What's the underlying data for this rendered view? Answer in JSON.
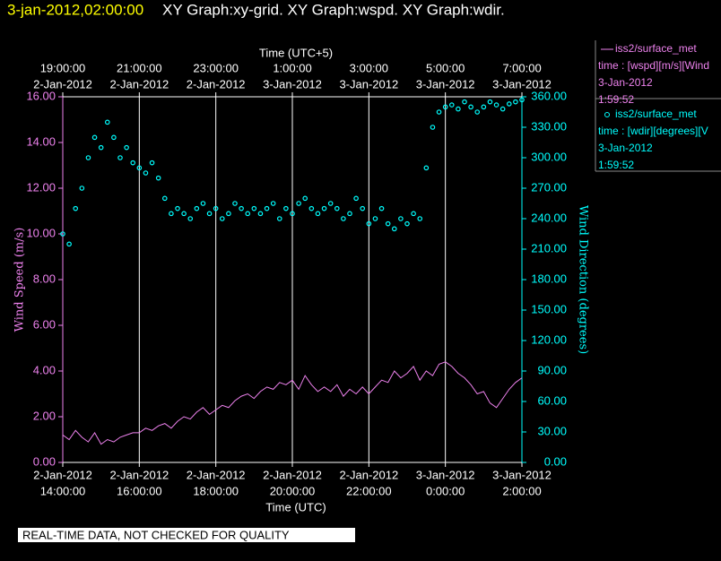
{
  "timestamp": "3-jan-2012,02:00:00",
  "footer_note": "REAL-TIME DATA, NOT CHECKED FOR QUALITY",
  "chart_data": {
    "type": "line_scatter",
    "title": "XY Graph:xy-grid.  XY Graph:wspd.  XY Graph:wdir.",
    "xlabel": "Time (UTC)",
    "x2label": "Time (UTC+5)",
    "ylabel": "Wind Speed (m/s)",
    "y2label": "Wind Direction (degrees)",
    "grid": true,
    "xlim": [
      "2012-01-02 14:00",
      "2012-01-03 02:00"
    ],
    "xticks": [
      {
        "value": "2012-01-02 14:00",
        "label": [
          "2-Jan-2012",
          "14:00:00"
        ]
      },
      {
        "value": "2012-01-02 16:00",
        "label": [
          "2-Jan-2012",
          "16:00:00"
        ]
      },
      {
        "value": "2012-01-02 18:00",
        "label": [
          "2-Jan-2012",
          "18:00:00"
        ]
      },
      {
        "value": "2012-01-02 20:00",
        "label": [
          "2-Jan-2012",
          "20:00:00"
        ]
      },
      {
        "value": "2012-01-02 22:00",
        "label": [
          "2-Jan-2012",
          "22:00:00"
        ]
      },
      {
        "value": "2012-01-03 00:00",
        "label": [
          "3-Jan-2012",
          "0:00:00"
        ]
      },
      {
        "value": "2012-01-03 02:00",
        "label": [
          "3-Jan-2012",
          "2:00:00"
        ]
      }
    ],
    "x2ticks": [
      {
        "value": "2012-01-02 14:00",
        "label": [
          "19:00:00",
          "2-Jan-2012"
        ]
      },
      {
        "value": "2012-01-02 16:00",
        "label": [
          "21:00:00",
          "2-Jan-2012"
        ]
      },
      {
        "value": "2012-01-02 18:00",
        "label": [
          "23:00:00",
          "2-Jan-2012"
        ]
      },
      {
        "value": "2012-01-02 20:00",
        "label": [
          "1:00:00",
          "3-Jan-2012"
        ]
      },
      {
        "value": "2012-01-02 22:00",
        "label": [
          "3:00:00",
          "3-Jan-2012"
        ]
      },
      {
        "value": "2012-01-03 00:00",
        "label": [
          "5:00:00",
          "3-Jan-2012"
        ]
      },
      {
        "value": "2012-01-03 02:00",
        "label": [
          "7:00:00",
          "3-Jan-2012"
        ]
      }
    ],
    "ylim": [
      0,
      16
    ],
    "yticks": [
      {
        "value": 0,
        "label": "0.00"
      },
      {
        "value": 2,
        "label": "2.00"
      },
      {
        "value": 4,
        "label": "4.00"
      },
      {
        "value": 6,
        "label": "6.00"
      },
      {
        "value": 8,
        "label": "8.00"
      },
      {
        "value": 10,
        "label": "10.00"
      },
      {
        "value": 12,
        "label": "12.00"
      },
      {
        "value": 14,
        "label": "14.00"
      },
      {
        "value": 16,
        "label": "16.00"
      }
    ],
    "y2lim": [
      0,
      360
    ],
    "y2ticks": [
      {
        "value": 0,
        "label": "0.00"
      },
      {
        "value": 30,
        "label": "30.00"
      },
      {
        "value": 60,
        "label": "60.00"
      },
      {
        "value": 90,
        "label": "90.00"
      },
      {
        "value": 120,
        "label": "120.00"
      },
      {
        "value": 150,
        "label": "150.00"
      },
      {
        "value": 180,
        "label": "180.00"
      },
      {
        "value": 210,
        "label": "210.00"
      },
      {
        "value": 240,
        "label": "240.00"
      },
      {
        "value": 270,
        "label": "270.00"
      },
      {
        "value": 300,
        "label": "300.00"
      },
      {
        "value": 330,
        "label": "330.00"
      },
      {
        "value": 360,
        "label": "360.00"
      }
    ],
    "x": [
      "2012-01-02 14:00",
      "2012-01-02 14:10",
      "2012-01-02 14:20",
      "2012-01-02 14:30",
      "2012-01-02 14:40",
      "2012-01-02 14:50",
      "2012-01-02 15:00",
      "2012-01-02 15:10",
      "2012-01-02 15:20",
      "2012-01-02 15:30",
      "2012-01-02 15:40",
      "2012-01-02 15:50",
      "2012-01-02 16:00",
      "2012-01-02 16:10",
      "2012-01-02 16:20",
      "2012-01-02 16:30",
      "2012-01-02 16:40",
      "2012-01-02 16:50",
      "2012-01-02 17:00",
      "2012-01-02 17:10",
      "2012-01-02 17:20",
      "2012-01-02 17:30",
      "2012-01-02 17:40",
      "2012-01-02 17:50",
      "2012-01-02 18:00",
      "2012-01-02 18:10",
      "2012-01-02 18:20",
      "2012-01-02 18:30",
      "2012-01-02 18:40",
      "2012-01-02 18:50",
      "2012-01-02 19:00",
      "2012-01-02 19:10",
      "2012-01-02 19:20",
      "2012-01-02 19:30",
      "2012-01-02 19:40",
      "2012-01-02 19:50",
      "2012-01-02 20:00",
      "2012-01-02 20:10",
      "2012-01-02 20:20",
      "2012-01-02 20:30",
      "2012-01-02 20:40",
      "2012-01-02 20:50",
      "2012-01-02 21:00",
      "2012-01-02 21:10",
      "2012-01-02 21:20",
      "2012-01-02 21:30",
      "2012-01-02 21:40",
      "2012-01-02 21:50",
      "2012-01-02 22:00",
      "2012-01-02 22:10",
      "2012-01-02 22:20",
      "2012-01-02 22:30",
      "2012-01-02 22:40",
      "2012-01-02 22:50",
      "2012-01-02 23:00",
      "2012-01-02 23:10",
      "2012-01-02 23:20",
      "2012-01-02 23:30",
      "2012-01-02 23:40",
      "2012-01-02 23:50",
      "2012-01-03 00:00",
      "2012-01-03 00:10",
      "2012-01-03 00:20",
      "2012-01-03 00:30",
      "2012-01-03 00:40",
      "2012-01-03 00:50",
      "2012-01-03 01:00",
      "2012-01-03 01:10",
      "2012-01-03 01:20",
      "2012-01-03 01:30",
      "2012-01-03 01:40",
      "2012-01-03 01:50",
      "2012-01-03 02:00"
    ],
    "series": [
      {
        "name": "iss2/surface_met",
        "color": "#ee82ee",
        "marker": "line",
        "axis": "y",
        "legend_text": [
          "time : [wspd][m/s][Wind",
          "3-Jan-2012",
          "1:59:52"
        ],
        "values": [
          1.2,
          1.0,
          1.4,
          1.1,
          0.9,
          1.3,
          0.8,
          1.0,
          0.9,
          1.1,
          1.2,
          1.3,
          1.3,
          1.5,
          1.4,
          1.6,
          1.7,
          1.5,
          1.8,
          2.0,
          1.9,
          2.2,
          2.4,
          2.1,
          2.3,
          2.5,
          2.4,
          2.7,
          2.9,
          3.0,
          2.8,
          3.1,
          3.3,
          3.2,
          3.5,
          3.4,
          3.6,
          3.2,
          3.8,
          3.4,
          3.1,
          3.3,
          3.1,
          3.4,
          2.9,
          3.2,
          3.0,
          3.3,
          3.0,
          3.3,
          3.6,
          3.5,
          4.0,
          3.7,
          3.9,
          4.2,
          3.6,
          4.0,
          3.8,
          4.3,
          4.4,
          4.2,
          3.9,
          3.7,
          3.4,
          3.0,
          3.1,
          2.6,
          2.4,
          2.8,
          3.2,
          3.5,
          3.7
        ]
      },
      {
        "name": "iss2/surface_met",
        "color": "#00ffff",
        "marker": "circle",
        "axis": "y2",
        "legend_text": [
          "time : [wdir][degrees][V",
          "3-Jan-2012",
          "1:59:52"
        ],
        "values": [
          225,
          215,
          250,
          270,
          300,
          320,
          310,
          335,
          320,
          300,
          310,
          295,
          290,
          285,
          295,
          280,
          260,
          245,
          250,
          245,
          240,
          250,
          255,
          245,
          250,
          240,
          245,
          255,
          250,
          245,
          250,
          245,
          250,
          255,
          240,
          250,
          245,
          255,
          260,
          250,
          245,
          250,
          255,
          250,
          240,
          245,
          260,
          250,
          235,
          240,
          250,
          235,
          230,
          240,
          235,
          245,
          240,
          290,
          330,
          345,
          350,
          352,
          348,
          355,
          350,
          345,
          350,
          355,
          352,
          348,
          353,
          355,
          357
        ]
      }
    ]
  }
}
